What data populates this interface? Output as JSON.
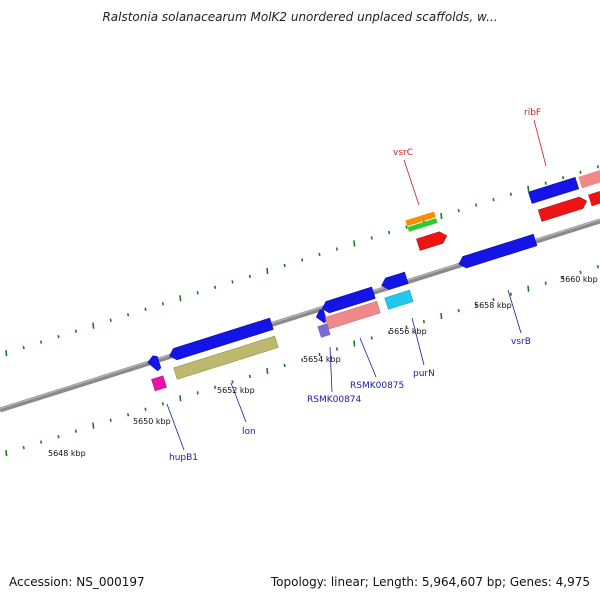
{
  "title": "Ralstonia solanacearum MolK2 unordered unplaced scaffolds, w...",
  "footer": {
    "accession": "Accession: NS_000197",
    "topology": "Topology: linear; Length: 5,964,607 bp; Genes: 4,975"
  },
  "colors": {
    "backbone": "#8a8a8a",
    "tick": "#1c7a1c",
    "label_blue": "#1a1aa6",
    "label_red": "#cc1a1a",
    "gene_blue": "#1414e6",
    "gene_red": "#ee1414",
    "gene_pink": "#f08a8a",
    "gene_olive": "#bdb86e",
    "gene_cyan": "#22c8f0",
    "gene_magenta": "#ee10a8",
    "gene_orange": "#ff8c00",
    "gene_green": "#32c832",
    "gene_purple": "#7a6ad0"
  },
  "tick_labels": [
    {
      "text": "5648 kbp"
    },
    {
      "text": "5650 kbp"
    },
    {
      "text": "5652 kbp"
    },
    {
      "text": "5654 kbp"
    },
    {
      "text": "5656 kbp"
    },
    {
      "text": "5658 kbp"
    },
    {
      "text": "5660 kbp"
    }
  ],
  "gene_labels": [
    {
      "text": "hupB1",
      "color": "blue"
    },
    {
      "text": "lon",
      "color": "blue"
    },
    {
      "text": "RSMK00874",
      "color": "blue"
    },
    {
      "text": "RSMK00875",
      "color": "blue"
    },
    {
      "text": "purN",
      "color": "blue"
    },
    {
      "text": "vsrB",
      "color": "blue"
    },
    {
      "text": "vsrC",
      "color": "red"
    },
    {
      "text": "ribF",
      "color": "red"
    }
  ]
}
